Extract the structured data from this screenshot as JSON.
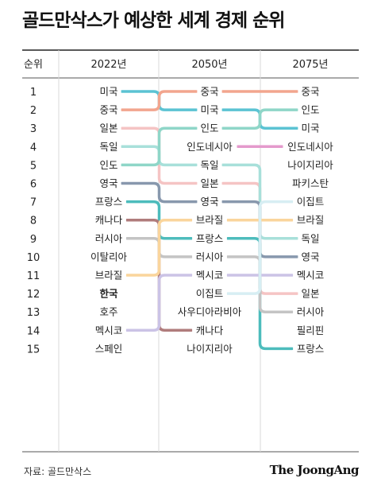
{
  "title": "골드만삭스가 예상한 세계 경제 순위",
  "source": "자료: 골드만삭스",
  "brand": "The JoongAng",
  "chart_data": {
    "type": "table",
    "headers": [
      "순위",
      "2022년",
      "2050년",
      "2075년"
    ],
    "ranks": [
      "1",
      "2",
      "3",
      "4",
      "5",
      "6",
      "7",
      "8",
      "9",
      "10",
      "11",
      "12",
      "13",
      "14",
      "15"
    ],
    "years": {
      "2022": [
        "미국",
        "중국",
        "일본",
        "독일",
        "인도",
        "영국",
        "프랑스",
        "캐나다",
        "러시아",
        "이탈리아",
        "브라질",
        "한국",
        "호주",
        "멕시코",
        "스페인"
      ],
      "2050": [
        "중국",
        "미국",
        "인도",
        "인도네시아",
        "독일",
        "일본",
        "영국",
        "브라질",
        "프랑스",
        "러시아",
        "멕시코",
        "이집트",
        "사우디아라비아",
        "캐나다",
        "나이지리아"
      ],
      "2075": [
        "중국",
        "인도",
        "미국",
        "인도네시아",
        "나이지리아",
        "파키스탄",
        "이집트",
        "브라질",
        "독일",
        "영국",
        "멕시코",
        "일본",
        "러시아",
        "필리핀",
        "프랑스"
      ]
    },
    "highlight": "한국",
    "line_colors": {
      "미국": "#5bc3d3",
      "중국": "#f2a58e",
      "일본": "#f5c4c4",
      "독일": "#a8e0da",
      "인도": "#8fd6c8",
      "영국": "#8898ad",
      "프랑스": "#4dbcbc",
      "캐나다": "#b07c7c",
      "러시아": "#c4c4c4",
      "브라질": "#fad59c",
      "멕시코": "#cbc3e6",
      "인도네시아": "#e49acc",
      "이집트": "#d7eef3"
    }
  }
}
